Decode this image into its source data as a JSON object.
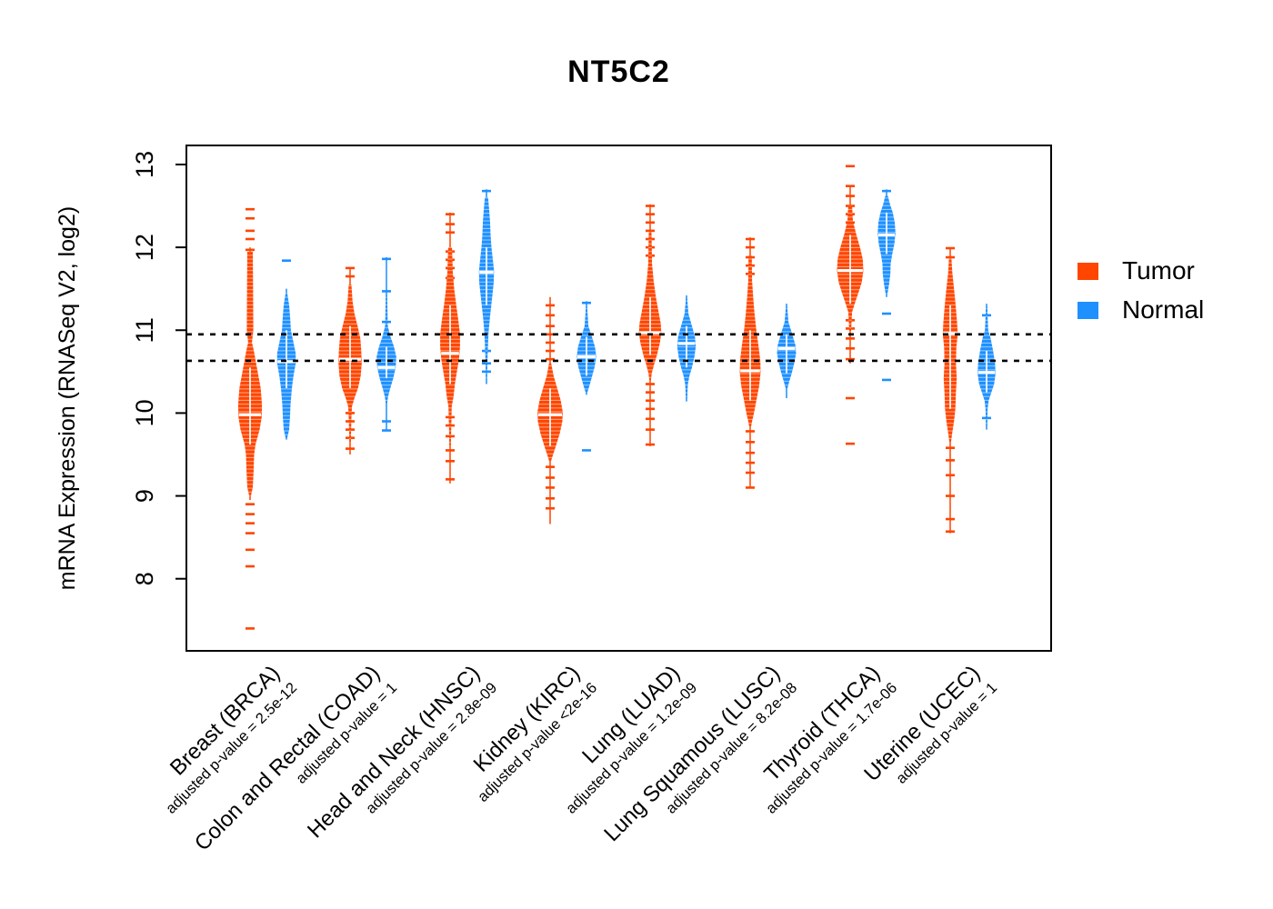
{
  "title": "NT5C2",
  "legend": {
    "items": [
      {
        "label": "Tumor",
        "color": "#FF4500"
      },
      {
        "label": "Normal",
        "color": "#1E90FF"
      }
    ]
  },
  "chart_data": {
    "type": "violin",
    "title": "NT5C2",
    "ylabel": "mRNA Expression (RNASeq V2, log2)",
    "xlabel": "",
    "yticks": [
      8,
      9,
      10,
      11,
      12,
      13
    ],
    "ylim": [
      7.13,
      13.23
    ],
    "grid": false,
    "legend_position": "right",
    "reference_lines": [
      10.95,
      10.63
    ],
    "groups": [
      "Tumor",
      "Normal"
    ],
    "colors": {
      "Tumor": "#FF4500",
      "Normal": "#1E90FF"
    },
    "categories": [
      {
        "label": "Breast (BRCA)",
        "pvalue_label": "adjusted p-value = 2.5e-12",
        "tumor": {
          "median": 9.98,
          "stem": [
            12.0,
            8.95
          ],
          "profile": [
            [
              11.95,
              0.2
            ],
            [
              11.55,
              0.22
            ],
            [
              11.0,
              0.24
            ],
            [
              10.85,
              0.14
            ],
            [
              10.75,
              0.28
            ],
            [
              10.55,
              0.5
            ],
            [
              10.3,
              0.78
            ],
            [
              10.1,
              0.87
            ],
            [
              9.95,
              0.85
            ],
            [
              9.8,
              0.7
            ],
            [
              9.62,
              0.4
            ],
            [
              9.5,
              0.3
            ],
            [
              9.3,
              0.26
            ],
            [
              9.1,
              0.2
            ],
            [
              9.0,
              0.06
            ]
          ],
          "dashes": [
            12.46,
            12.35,
            12.2,
            12.1,
            11.97,
            8.9,
            8.78,
            8.67,
            8.55,
            8.35,
            8.15,
            7.4
          ]
        },
        "normal": {
          "median": 10.62,
          "stem": [
            11.5,
            9.68
          ],
          "profile": [
            [
              11.45,
              0.06
            ],
            [
              11.3,
              0.2
            ],
            [
              11.15,
              0.27
            ],
            [
              11.0,
              0.33
            ],
            [
              10.85,
              0.52
            ],
            [
              10.72,
              0.68
            ],
            [
              10.6,
              0.68
            ],
            [
              10.45,
              0.52
            ],
            [
              10.3,
              0.4
            ],
            [
              10.1,
              0.3
            ],
            [
              9.95,
              0.26
            ],
            [
              9.8,
              0.2
            ],
            [
              9.7,
              0.06
            ]
          ],
          "dashes": [
            11.84
          ]
        }
      },
      {
        "label": "Colon and Rectal (COAD)",
        "pvalue_label": "adjusted p-value = 1",
        "tumor": {
          "median": 10.65,
          "stem": [
            11.75,
            9.5
          ],
          "profile": [
            [
              11.55,
              0.1
            ],
            [
              11.35,
              0.18
            ],
            [
              11.2,
              0.32
            ],
            [
              11.05,
              0.55
            ],
            [
              10.9,
              0.75
            ],
            [
              10.75,
              0.82
            ],
            [
              10.6,
              0.85
            ],
            [
              10.45,
              0.78
            ],
            [
              10.3,
              0.58
            ],
            [
              10.18,
              0.32
            ],
            [
              10.08,
              0.14
            ],
            [
              9.95,
              0.1
            ],
            [
              9.65,
              0.05
            ]
          ],
          "dashes": [
            11.75,
            11.65,
            10.0,
            9.9,
            9.8,
            9.7,
            9.57
          ]
        },
        "normal": {
          "median": 10.55,
          "stem": [
            11.88,
            9.78
          ],
          "profile": [
            [
              11.42,
              0.05
            ],
            [
              11.05,
              0.1
            ],
            [
              10.92,
              0.3
            ],
            [
              10.8,
              0.55
            ],
            [
              10.68,
              0.72
            ],
            [
              10.55,
              0.68
            ],
            [
              10.42,
              0.5
            ],
            [
              10.3,
              0.28
            ],
            [
              10.2,
              0.12
            ],
            [
              10.12,
              0.05
            ]
          ],
          "dashes": [
            11.86,
            11.47,
            11.1,
            9.9,
            9.79
          ]
        }
      },
      {
        "label": "Head and Neck (HNSC)",
        "pvalue_label": "adjusted p-value = 2.8e-09",
        "tumor": {
          "median": 10.72,
          "stem": [
            12.42,
            9.15
          ],
          "profile": [
            [
              12.0,
              0.14
            ],
            [
              11.7,
              0.2
            ],
            [
              11.5,
              0.3
            ],
            [
              11.3,
              0.45
            ],
            [
              11.1,
              0.62
            ],
            [
              10.95,
              0.73
            ],
            [
              10.8,
              0.73
            ],
            [
              10.65,
              0.65
            ],
            [
              10.5,
              0.5
            ],
            [
              10.35,
              0.35
            ],
            [
              10.2,
              0.25
            ],
            [
              10.08,
              0.12
            ],
            [
              9.6,
              0.05
            ]
          ],
          "dashes": [
            12.4,
            12.28,
            12.18,
            11.95,
            11.85,
            11.75,
            11.63,
            9.95,
            9.85,
            9.72,
            9.55,
            9.42,
            9.2
          ]
        },
        "normal": {
          "median": 11.7,
          "stem": [
            12.7,
            10.35
          ],
          "profile": [
            [
              12.6,
              0.12
            ],
            [
              12.45,
              0.2
            ],
            [
              12.3,
              0.27
            ],
            [
              12.15,
              0.3
            ],
            [
              12.0,
              0.37
            ],
            [
              11.85,
              0.47
            ],
            [
              11.72,
              0.55
            ],
            [
              11.58,
              0.53
            ],
            [
              11.45,
              0.45
            ],
            [
              11.3,
              0.35
            ],
            [
              11.15,
              0.25
            ],
            [
              11.0,
              0.17
            ],
            [
              10.85,
              0.12
            ],
            [
              10.6,
              0.07
            ],
            [
              10.42,
              0.04
            ]
          ],
          "dashes": [
            12.68,
            10.75,
            10.6,
            10.5
          ]
        }
      },
      {
        "label": "Kidney (KIRC)",
        "pvalue_label": "adjusted p-value <2e-16",
        "tumor": {
          "median": 9.98,
          "stem": [
            11.4,
            8.66
          ],
          "profile": [
            [
              10.6,
              0.08
            ],
            [
              10.45,
              0.25
            ],
            [
              10.3,
              0.52
            ],
            [
              10.15,
              0.78
            ],
            [
              10.02,
              0.92
            ],
            [
              9.9,
              0.9
            ],
            [
              9.75,
              0.7
            ],
            [
              9.6,
              0.42
            ],
            [
              9.48,
              0.18
            ],
            [
              9.42,
              0.07
            ]
          ],
          "dashes": [
            11.3,
            11.18,
            11.05,
            10.95,
            10.85,
            10.75,
            10.65,
            9.35,
            9.22,
            9.1,
            8.97,
            8.85
          ]
        },
        "normal": {
          "median": 10.68,
          "stem": [
            11.35,
            10.22
          ],
          "profile": [
            [
              11.28,
              0.05
            ],
            [
              11.05,
              0.14
            ],
            [
              10.92,
              0.4
            ],
            [
              10.8,
              0.62
            ],
            [
              10.68,
              0.72
            ],
            [
              10.56,
              0.6
            ],
            [
              10.45,
              0.42
            ],
            [
              10.33,
              0.22
            ],
            [
              10.25,
              0.07
            ]
          ],
          "dashes": [
            11.33,
            9.55
          ]
        }
      },
      {
        "label": "Lung (LUAD)",
        "pvalue_label": "adjusted p-value = 1.2e-09",
        "tumor": {
          "median": 10.97,
          "stem": [
            12.52,
            9.6
          ],
          "profile": [
            [
              12.18,
              0.1
            ],
            [
              11.8,
              0.14
            ],
            [
              11.6,
              0.25
            ],
            [
              11.4,
              0.42
            ],
            [
              11.22,
              0.62
            ],
            [
              11.08,
              0.78
            ],
            [
              10.97,
              0.82
            ],
            [
              10.85,
              0.72
            ],
            [
              10.7,
              0.5
            ],
            [
              10.58,
              0.28
            ],
            [
              10.48,
              0.12
            ],
            [
              10.4,
              0.06
            ]
          ],
          "dashes": [
            12.5,
            12.4,
            12.3,
            12.2,
            12.1,
            12.0,
            11.9,
            10.35,
            10.25,
            10.15,
            10.05,
            9.93,
            9.8,
            9.62
          ]
        },
        "normal": {
          "median": 10.84,
          "stem": [
            11.42,
            10.14
          ],
          "profile": [
            [
              11.38,
              0.05
            ],
            [
              11.2,
              0.14
            ],
            [
              11.05,
              0.4
            ],
            [
              10.92,
              0.62
            ],
            [
              10.8,
              0.68
            ],
            [
              10.68,
              0.58
            ],
            [
              10.55,
              0.4
            ],
            [
              10.45,
              0.22
            ],
            [
              10.35,
              0.1
            ],
            [
              10.18,
              0.05
            ]
          ],
          "dashes": []
        }
      },
      {
        "label": "Lung Squamous (LUSC)",
        "pvalue_label": "adjusted p-value = 8.2e-08",
        "tumor": {
          "median": 10.51,
          "stem": [
            12.12,
            9.1
          ],
          "profile": [
            [
              11.9,
              0.12
            ],
            [
              11.6,
              0.14
            ],
            [
              11.4,
              0.22
            ],
            [
              11.2,
              0.32
            ],
            [
              11.0,
              0.45
            ],
            [
              10.8,
              0.62
            ],
            [
              10.62,
              0.75
            ],
            [
              10.48,
              0.76
            ],
            [
              10.32,
              0.65
            ],
            [
              10.15,
              0.45
            ],
            [
              10.0,
              0.28
            ],
            [
              9.9,
              0.14
            ],
            [
              9.83,
              0.06
            ]
          ],
          "dashes": [
            12.1,
            12.0,
            11.88,
            11.78,
            11.68,
            9.78,
            9.65,
            9.52,
            9.4,
            9.28,
            9.1
          ]
        },
        "normal": {
          "median": 10.78,
          "stem": [
            11.32,
            10.18
          ],
          "profile": [
            [
              11.28,
              0.05
            ],
            [
              11.1,
              0.14
            ],
            [
              10.95,
              0.42
            ],
            [
              10.82,
              0.65
            ],
            [
              10.72,
              0.7
            ],
            [
              10.6,
              0.56
            ],
            [
              10.48,
              0.38
            ],
            [
              10.38,
              0.2
            ],
            [
              10.3,
              0.07
            ]
          ],
          "dashes": []
        }
      },
      {
        "label": "Thyroid (THCA)",
        "pvalue_label": "adjusted p-value = 1.7e-06",
        "tumor": {
          "median": 11.72,
          "stem": [
            12.75,
            10.6
          ],
          "profile": [
            [
              12.5,
              0.14
            ],
            [
              12.32,
              0.2
            ],
            [
              12.15,
              0.45
            ],
            [
              12.0,
              0.72
            ],
            [
              11.86,
              0.92
            ],
            [
              11.72,
              0.97
            ],
            [
              11.58,
              0.85
            ],
            [
              11.45,
              0.6
            ],
            [
              11.32,
              0.33
            ],
            [
              11.22,
              0.14
            ],
            [
              11.1,
              0.1
            ],
            [
              10.98,
              0.07
            ]
          ],
          "dashes": [
            12.98,
            12.74,
            12.62,
            12.5,
            12.4,
            12.3,
            11.12,
            11.02,
            10.9,
            10.78,
            10.65,
            10.18,
            9.63
          ]
        },
        "normal": {
          "median": 12.15,
          "stem": [
            12.7,
            11.4
          ],
          "profile": [
            [
              12.62,
              0.1
            ],
            [
              12.52,
              0.25
            ],
            [
              12.42,
              0.45
            ],
            [
              12.3,
              0.6
            ],
            [
              12.18,
              0.65
            ],
            [
              12.05,
              0.58
            ],
            [
              11.92,
              0.42
            ],
            [
              11.8,
              0.3
            ],
            [
              11.68,
              0.28
            ],
            [
              11.55,
              0.18
            ],
            [
              11.45,
              0.08
            ]
          ],
          "dashes": [
            12.68,
            11.2,
            10.4
          ]
        }
      },
      {
        "label": "Uterine (UCEC)",
        "pvalue_label": "adjusted p-value = 1",
        "tumor": {
          "median": 10.96,
          "stem": [
            12.0,
            8.55
          ],
          "profile": [
            [
              11.9,
              0.08
            ],
            [
              11.7,
              0.15
            ],
            [
              11.5,
              0.28
            ],
            [
              11.3,
              0.4
            ],
            [
              11.1,
              0.5
            ],
            [
              10.95,
              0.55
            ],
            [
              10.8,
              0.45
            ],
            [
              10.6,
              0.42
            ],
            [
              10.42,
              0.48
            ],
            [
              10.25,
              0.42
            ],
            [
              10.05,
              0.38
            ],
            [
              9.9,
              0.28
            ],
            [
              9.75,
              0.14
            ],
            [
              9.65,
              0.06
            ]
          ],
          "dashes": [
            11.99,
            11.88,
            9.58,
            9.43,
            9.25,
            9.0,
            8.72,
            8.57
          ]
        },
        "normal": {
          "median": 10.49,
          "stem": [
            11.32,
            9.8
          ],
          "profile": [
            [
              11.28,
              0.05
            ],
            [
              11.0,
              0.12
            ],
            [
              10.9,
              0.3
            ],
            [
              10.75,
              0.48
            ],
            [
              10.6,
              0.62
            ],
            [
              10.48,
              0.66
            ],
            [
              10.35,
              0.55
            ],
            [
              10.25,
              0.35
            ],
            [
              10.15,
              0.15
            ],
            [
              10.05,
              0.08
            ],
            [
              9.85,
              0.04
            ]
          ],
          "dashes": [
            11.18,
            9.94
          ]
        }
      }
    ]
  }
}
